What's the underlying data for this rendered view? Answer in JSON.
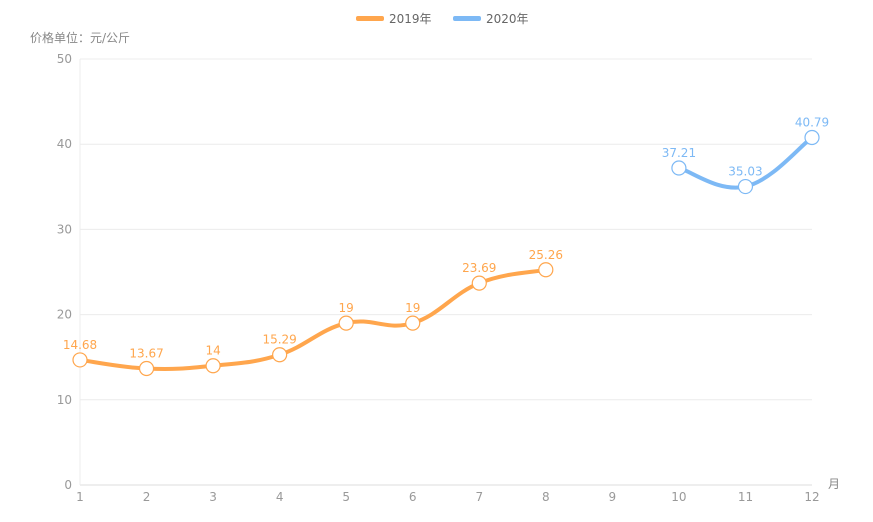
{
  "chart_data": {
    "type": "line",
    "ylabel": "价格单位：元/公斤",
    "xlabel": "月",
    "x": [
      "1",
      "2",
      "3",
      "4",
      "5",
      "6",
      "7",
      "8",
      "9",
      "10",
      "11",
      "12"
    ],
    "ylim": [
      0,
      50
    ],
    "yticks": [
      0,
      10,
      20,
      30,
      40,
      50
    ],
    "grid": true,
    "smooth": true,
    "legend_position": "top-center",
    "series": [
      {
        "name": "2019年",
        "color": "#FFA64D",
        "values": [
          14.68,
          13.67,
          14,
          15.29,
          19,
          19,
          23.69,
          25.26,
          null,
          null,
          null,
          null
        ]
      },
      {
        "name": "2020年",
        "color": "#7DB9F5",
        "values": [
          null,
          null,
          null,
          null,
          null,
          null,
          null,
          null,
          null,
          37.21,
          35.03,
          40.79
        ]
      }
    ]
  }
}
